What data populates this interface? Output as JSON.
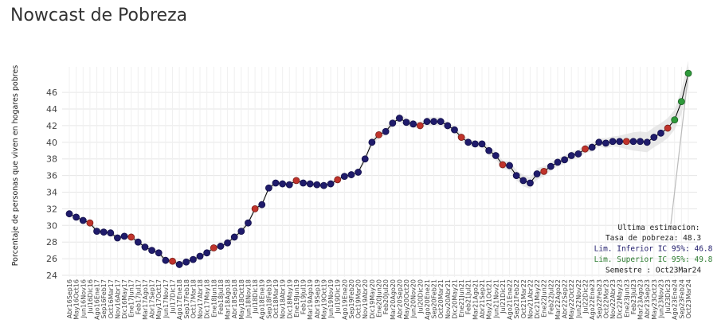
{
  "title": "Nowcast de Pobreza",
  "chart_data": {
    "type": "line",
    "title": "Nowcast de Pobreza",
    "xlabel": "",
    "ylabel": "Porcentaje de personas que viven en hogares pobres",
    "ylim": [
      24,
      48.5
    ],
    "yticks": [
      24,
      26,
      28,
      30,
      32,
      34,
      36,
      38,
      40,
      42,
      44,
      46
    ],
    "grid": true,
    "colors": {
      "nowcast": "#1f1b6b",
      "observed": "#c0332b",
      "latest": "#2e9a3a",
      "band": "#d9d9d9",
      "line": "#000000"
    },
    "categories": [
      "Abr16Sep16",
      "May16Oct16",
      "Jun16Nov16",
      "Jul16Dic16",
      "Ago16Ene17",
      "Sep16Feb17",
      "Oct16Mar17",
      "Nov16Abr17",
      "Dic16May17",
      "Ene17Jun17",
      "Feb17Jul17",
      "Mar17Ago17",
      "Abr17Sep17",
      "May17Oct17",
      "Jun17Nov17",
      "Jul17Dic17",
      "Ago17Ene18",
      "Sep17Feb18",
      "Oct17Mar18",
      "Nov17Abr18",
      "Dic17May18",
      "Ene18Jun18",
      "Feb18Jul18",
      "Mar18Ago18",
      "Abr18Sep18",
      "May18Oct18",
      "Jun18Nov18",
      "Jul18Dic18",
      "Ago18Ene19",
      "Sep18Feb19",
      "Oct18Mar19",
      "Nov18Abr19",
      "Dic18May19",
      "Ene19Jun19",
      "Feb19Jul19",
      "Mar19Ago19",
      "Abr19Sep19",
      "May19Oct19",
      "Jun19Nov19",
      "Jul19Dic19",
      "Ago19Ene20",
      "Sep19Feb20",
      "Oct19Mar20",
      "Nov19Abr20",
      "Dic19May20",
      "Ene20Jun20",
      "Feb20Jul20",
      "Mar20Ago20",
      "Abr20Sep20",
      "May20Oct20",
      "Jun20Nov20",
      "Jul20Dic20",
      "Ago20Ene21",
      "Sep20Feb21",
      "Oct20Mar21",
      "Nov20Abr21",
      "Dic20May21",
      "Ene21Jun21",
      "Feb21Jul21",
      "Mar21Ago21",
      "Abr21Sep21",
      "May21Oct21",
      "Jun21Nov21",
      "Jul21Dic21",
      "Ago21Ene22",
      "Sep21Feb22",
      "Oct21Mar22",
      "Nov21Abr22",
      "Dic21May22",
      "Ene22Jun22",
      "Feb22Jul22",
      "Mar22Ago22",
      "Abr22Sep22",
      "May22Oct22",
      "Jun22Nov22",
      "Jul22Dic22",
      "Ago22Ene23",
      "Sep22Feb23",
      "Oct22Mar23",
      "Nov22Abr23",
      "Dic22May23",
      "Ene23Jun23",
      "Feb23Jul23",
      "Mar23Ago23",
      "Abr23Sep23",
      "May23Oct23",
      "Jun23Nov23",
      "Jul23Dic23",
      "Ago23Ene24",
      "Sep23Feb24",
      "Oct23Mar24"
    ],
    "series": [
      {
        "values": [
          31.4,
          31.0,
          30.6,
          30.3,
          29.3,
          29.2,
          29.1,
          28.5,
          28.7,
          28.6,
          28.0,
          27.4,
          27.0,
          26.7,
          25.8,
          25.7,
          25.3,
          25.6,
          25.9,
          26.3,
          26.7,
          27.3,
          27.5,
          27.9,
          28.6,
          29.3,
          30.3,
          32.0,
          32.5,
          34.5,
          35.1,
          35.0,
          34.9,
          35.4,
          35.1,
          35.0,
          34.9,
          34.8,
          35.0,
          35.5,
          35.9,
          36.1,
          36.4,
          38.0,
          40.0,
          40.9,
          41.3,
          42.3,
          42.9,
          42.4,
          42.2,
          42.0,
          42.5,
          42.5,
          42.5,
          42.0,
          41.5,
          40.6,
          40.0,
          39.8,
          39.8,
          39.0,
          38.4,
          37.3,
          37.2,
          36.0,
          35.4,
          35.1,
          36.2,
          36.5,
          37.1,
          37.6,
          37.9,
          38.4,
          38.6,
          39.2,
          39.4,
          40.0,
          39.9,
          40.1,
          40.1,
          40.1,
          40.1,
          40.1,
          40.0,
          40.6,
          41.1,
          41.7,
          42.7,
          44.9,
          48.3
        ],
        "observed_index": [
          3,
          9,
          15,
          21,
          27,
          33,
          39,
          45,
          51,
          57,
          63,
          69,
          75,
          81,
          87
        ],
        "latest_index": [
          88,
          89,
          90
        ],
        "lower": [
          31.1,
          30.7,
          30.3,
          30.0,
          29.0,
          28.9,
          28.8,
          28.2,
          28.4,
          28.3,
          27.7,
          27.1,
          26.7,
          26.4,
          25.5,
          25.4,
          25.0,
          25.3,
          25.6,
          26.0,
          26.4,
          27.0,
          27.2,
          27.6,
          28.3,
          29.0,
          30.0,
          31.7,
          32.2,
          34.2,
          34.8,
          34.7,
          34.6,
          35.1,
          34.8,
          34.7,
          34.6,
          34.5,
          34.7,
          35.2,
          35.6,
          35.8,
          36.1,
          37.6,
          39.6,
          40.5,
          40.9,
          41.9,
          42.4,
          41.9,
          41.8,
          41.6,
          42.0,
          42.0,
          42.0,
          41.6,
          41.1,
          40.2,
          39.6,
          39.4,
          39.4,
          38.5,
          37.9,
          36.8,
          36.6,
          35.4,
          34.7,
          34.4,
          35.5,
          35.9,
          36.6,
          37.1,
          37.4,
          37.9,
          38.1,
          38.7,
          38.9,
          39.5,
          39.3,
          39.5,
          39.4,
          39.2,
          39.0,
          38.9,
          38.8,
          39.4,
          39.9,
          40.5,
          41.5,
          43.4,
          46.8
        ],
        "upper": [
          31.7,
          31.3,
          30.9,
          30.6,
          29.6,
          29.5,
          29.4,
          28.8,
          29.0,
          28.9,
          28.3,
          27.7,
          27.3,
          27.0,
          26.1,
          26.0,
          25.6,
          25.9,
          26.2,
          26.6,
          27.0,
          27.6,
          27.8,
          28.2,
          28.9,
          29.6,
          30.6,
          32.3,
          32.8,
          34.8,
          35.4,
          35.3,
          35.2,
          35.7,
          35.4,
          35.3,
          35.2,
          35.1,
          35.3,
          35.8,
          36.2,
          36.4,
          36.7,
          38.4,
          40.4,
          41.3,
          41.7,
          42.7,
          43.4,
          42.9,
          42.6,
          42.4,
          43.0,
          43.0,
          43.0,
          42.4,
          41.9,
          41.0,
          40.4,
          40.2,
          40.2,
          39.5,
          38.9,
          37.8,
          37.8,
          36.6,
          36.1,
          35.8,
          36.9,
          37.1,
          37.6,
          38.1,
          38.4,
          38.9,
          39.1,
          39.7,
          39.9,
          40.5,
          40.5,
          40.7,
          40.8,
          41.0,
          41.2,
          41.3,
          41.2,
          41.8,
          42.3,
          42.9,
          43.9,
          46.4,
          49.8
        ]
      }
    ],
    "annotation": {
      "header": "Ultima estimacion:",
      "lines": [
        "Tasa de pobreza:  48.3",
        "Lim. Inferior IC 95%:  46.8",
        "Lim. Superior IC 95%:  49.8",
        "Semestre : Oct23Mar24"
      ],
      "colors": [
        "#222222",
        "#1f1b6b",
        "#2e7d32",
        "#222222"
      ]
    }
  }
}
